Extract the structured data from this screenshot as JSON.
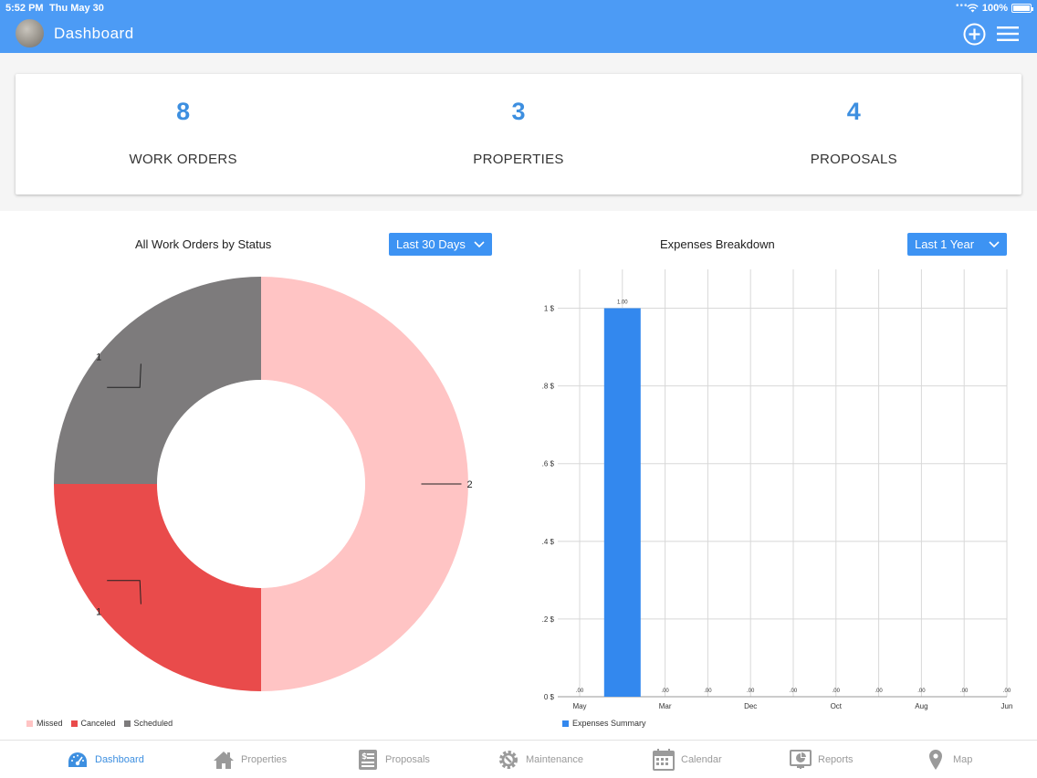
{
  "status_bar": {
    "time": "5:52 PM",
    "date": "Thu May 30",
    "battery": "100%"
  },
  "header": {
    "title": "Dashboard",
    "add_icon": "plus-circle-icon",
    "menu_icon": "hamburger-menu-icon"
  },
  "summary": [
    {
      "value": "8",
      "label": "WORK ORDERS"
    },
    {
      "value": "3",
      "label": "PROPERTIES"
    },
    {
      "value": "4",
      "label": "PROPOSALS"
    }
  ],
  "work_orders_chart": {
    "title": "All Work Orders by Status",
    "range": "Last 30 Days"
  },
  "expenses_chart": {
    "title": "Expenses Breakdown",
    "range": "Last 1 Year"
  },
  "chart_data": [
    {
      "type": "pie",
      "title": "All Work Orders by Status",
      "donut": true,
      "categories": [
        "Missed",
        "Canceled",
        "Scheduled"
      ],
      "values": [
        2,
        1,
        1
      ],
      "colors": [
        "#ffc4c4",
        "#e94b4b",
        "#7d7b7c"
      ],
      "legend_position": "bottom-left"
    },
    {
      "type": "bar",
      "title": "Expenses Breakdown",
      "categories": [
        "May",
        "",
        "Mar",
        "",
        "Dec",
        "",
        "Oct",
        "",
        "Aug",
        "",
        "Jun"
      ],
      "series": [
        {
          "name": "Expenses Summary",
          "values": [
            0,
            1.0,
            0,
            0,
            0,
            0,
            0,
            0,
            0,
            0,
            0
          ],
          "color": "#3388ee"
        }
      ],
      "data_labels": [
        ".00",
        "1.00",
        ".00",
        ".00",
        ".00",
        ".00",
        ".00",
        ".00",
        ".00",
        ".00",
        ".00"
      ],
      "ytick_labels": [
        "0 $",
        ".2 $",
        ".4 $",
        ".6 $",
        ".8 $",
        "1 $"
      ],
      "yticks": [
        0,
        0.2,
        0.4,
        0.6,
        0.8,
        1.0
      ],
      "ylim": [
        0,
        1.1
      ],
      "grid": true,
      "legend_position": "bottom-left"
    }
  ],
  "bottom_nav": [
    {
      "label": "Dashboard",
      "icon": "dashboard-gauge-icon",
      "active": true
    },
    {
      "label": "Properties",
      "icon": "house-icon",
      "active": false
    },
    {
      "label": "Proposals",
      "icon": "document-dollar-icon",
      "active": false
    },
    {
      "label": "Maintenance",
      "icon": "gear-wrench-icon",
      "active": false
    },
    {
      "label": "Calendar",
      "icon": "calendar-icon",
      "active": false
    },
    {
      "label": "Reports",
      "icon": "presentation-chart-icon",
      "active": false
    },
    {
      "label": "Map",
      "icon": "map-pin-icon",
      "active": false
    }
  ]
}
